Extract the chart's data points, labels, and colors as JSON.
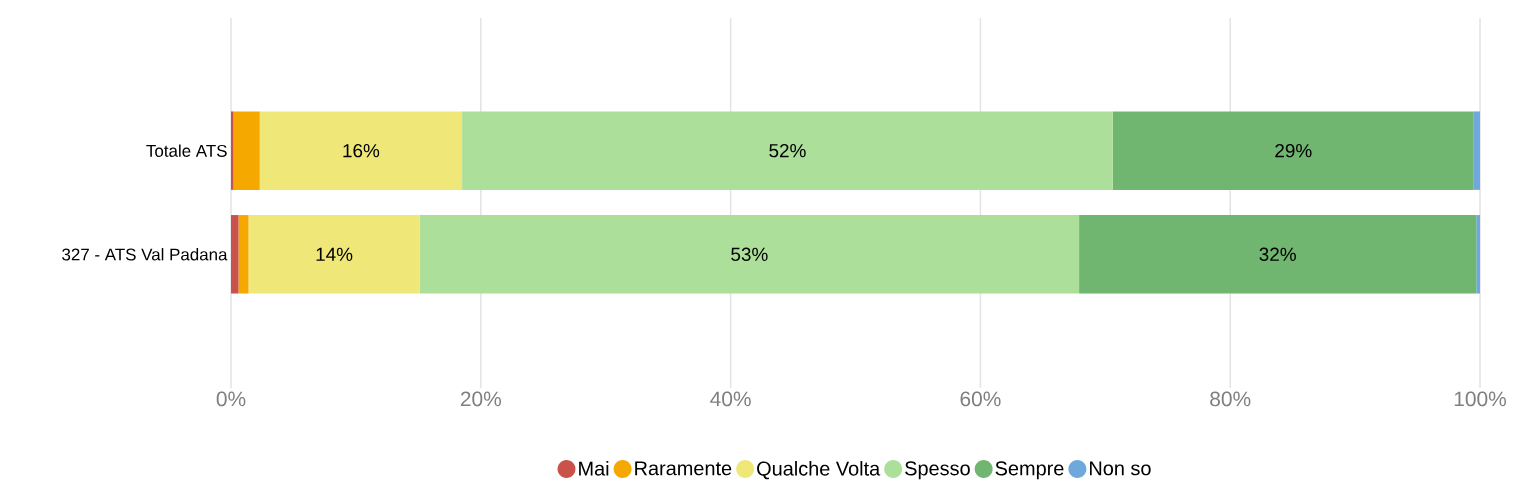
{
  "chart_data": {
    "type": "bar",
    "orientation": "horizontal",
    "stacked": true,
    "categories": [
      "Totale ATS",
      "327 - ATS Val Padana"
    ],
    "series": [
      {
        "name": "Mai",
        "color": "#c9534a",
        "values": [
          0.2,
          0.6
        ]
      },
      {
        "name": "Raramente",
        "color": "#f5a800",
        "values": [
          2.1,
          0.8
        ]
      },
      {
        "name": "Qualche Volta",
        "color": "#efe878",
        "values": [
          16.2,
          13.7
        ],
        "value_labels": [
          "16%",
          "14%"
        ]
      },
      {
        "name": "Spesso",
        "color": "#acdf9a",
        "values": [
          52.1,
          52.8
        ],
        "value_labels": [
          "52%",
          "53%"
        ]
      },
      {
        "name": "Sempre",
        "color": "#70b570",
        "values": [
          28.9,
          31.8
        ],
        "value_labels": [
          "29%",
          "32%"
        ]
      },
      {
        "name": "Non so",
        "color": "#6fa8dc",
        "values": [
          0.5,
          0.3
        ]
      }
    ],
    "xlim": [
      0,
      100
    ],
    "xticks": [
      {
        "value": 0,
        "label": "0%"
      },
      {
        "value": 20,
        "label": "20%"
      },
      {
        "value": 40,
        "label": "40%"
      },
      {
        "value": 60,
        "label": "60%"
      },
      {
        "value": 80,
        "label": "80%"
      },
      {
        "value": 100,
        "label": "100%"
      }
    ],
    "grid": "x",
    "legend": "bottom"
  }
}
